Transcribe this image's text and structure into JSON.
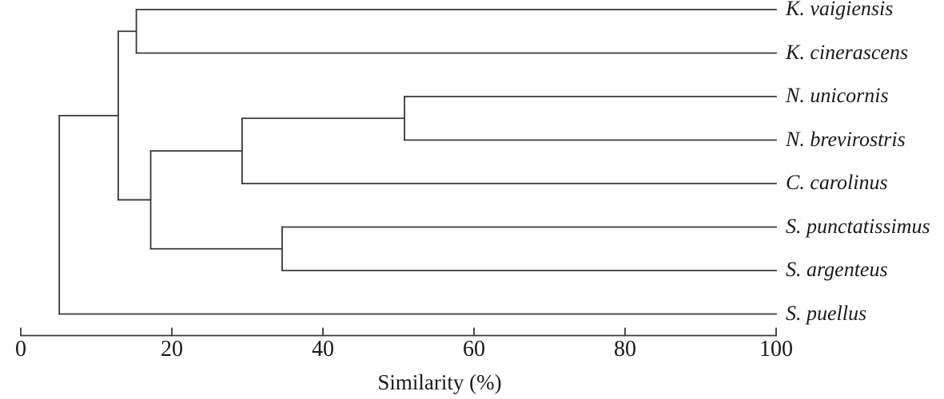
{
  "colors": {
    "line": "#3b3634",
    "text": "#1c1a19",
    "background": "#ffffff"
  },
  "chart_data": {
    "type": "dendrogram",
    "orientation": "horizontal-right-labels",
    "xlabel": "Similarity (%)",
    "axis": {
      "min": 0,
      "max": 100,
      "ticks": [
        0,
        20,
        40,
        60,
        80,
        100
      ]
    },
    "leaves": [
      "K. vaigiensis",
      "K. cinerascens",
      "N. unicornis",
      "N. brevirostris",
      "C. carolinus",
      "S. punctatissimus",
      "S. argenteus",
      "S. puellus"
    ],
    "merges": [
      {
        "members": [
          "K. vaigiensis",
          "K. cinerascens"
        ],
        "similarity": 15.3
      },
      {
        "members": [
          "N. unicornis",
          "N. brevirostris"
        ],
        "similarity": 50.8
      },
      {
        "members": [
          "(N. unicornis + N. brevirostris)",
          "C. carolinus"
        ],
        "similarity": 29.3
      },
      {
        "members": [
          "S. punctatissimus",
          "S. argenteus"
        ],
        "similarity": 34.6
      },
      {
        "members": [
          "(N-clade + C. carolinus)",
          "(S. punctatissimus + S. argenteus)"
        ],
        "similarity": 17.2
      },
      {
        "members": [
          "(K-clade)",
          "(central clade)"
        ],
        "similarity": 12.9
      },
      {
        "members": [
          "(all above)",
          "S. puellus"
        ],
        "similarity": 5.1
      }
    ],
    "tree": {
      "similarity": 5.1,
      "children": [
        {
          "similarity": 12.9,
          "children": [
            {
              "similarity": 15.3,
              "children": [
                {
                  "leaf": "K. vaigiensis"
                },
                {
                  "leaf": "K. cinerascens"
                }
              ]
            },
            {
              "similarity": 17.2,
              "children": [
                {
                  "similarity": 29.3,
                  "children": [
                    {
                      "similarity": 50.8,
                      "children": [
                        {
                          "leaf": "N. unicornis"
                        },
                        {
                          "leaf": "N. brevirostris"
                        }
                      ]
                    },
                    {
                      "leaf": "C. carolinus"
                    }
                  ]
                },
                {
                  "similarity": 34.6,
                  "children": [
                    {
                      "leaf": "S. punctatissimus"
                    },
                    {
                      "leaf": "S. argenteus"
                    }
                  ]
                }
              ]
            }
          ]
        },
        {
          "leaf": "S. puellus"
        }
      ]
    }
  }
}
